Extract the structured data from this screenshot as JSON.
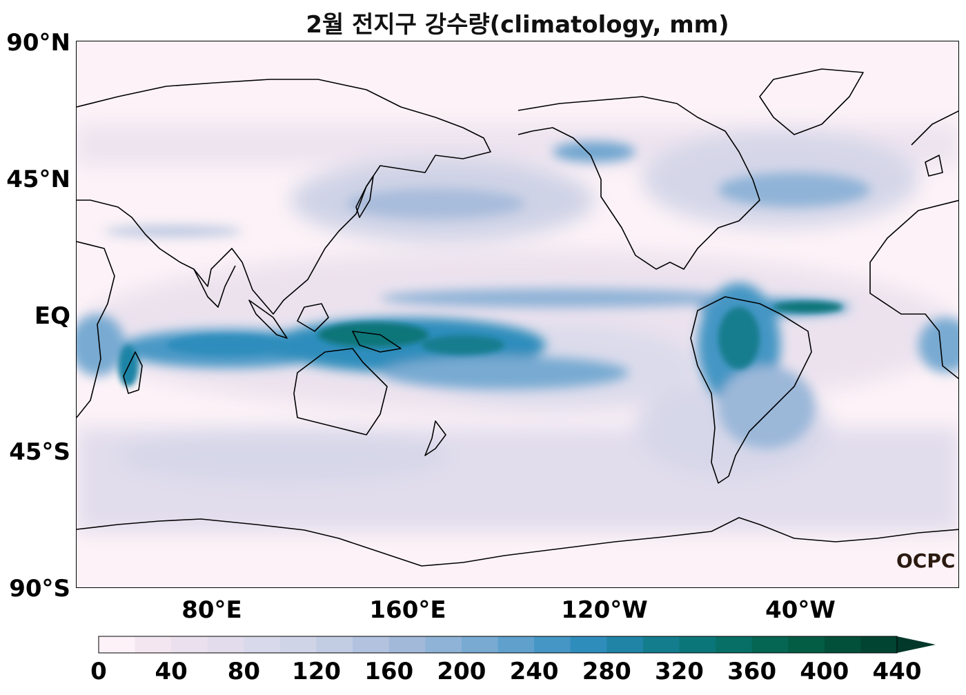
{
  "title": "2월 전지구 강수량(climatology, mm)",
  "lat_labels": [
    "90°N",
    "45°N",
    "EQ",
    "45°S",
    "90°S"
  ],
  "lon_labels": [
    "80°E",
    "160°E",
    "120°W",
    "40°W"
  ],
  "logo": "OCPC",
  "colorbar": {
    "ticks": [
      "0",
      "40",
      "80",
      "120",
      "160",
      "200",
      "240",
      "280",
      "320",
      "360",
      "400",
      "440"
    ],
    "colors": [
      "#fcf2f7",
      "#f4e6f0",
      "#ebe0ee",
      "#e2dcec",
      "#d8d9ea",
      "#cfd4e7",
      "#c2cde4",
      "#b3c3df",
      "#a3b9da",
      "#8fb3d7",
      "#78aad2",
      "#60a0cd",
      "#4596c4",
      "#2f8dbc",
      "#1f84a6",
      "#137d8e",
      "#0b7679",
      "#076f66",
      "#046653",
      "#035c44",
      "#02503a",
      "#014432",
      "#01382a"
    ],
    "extend": "max"
  }
}
